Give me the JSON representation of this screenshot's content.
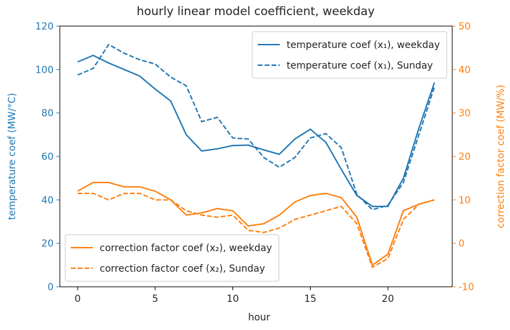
{
  "chart_data": {
    "type": "line",
    "title": "hourly linear model coefficient, weekday",
    "x_label": "hour",
    "y_label": "temperature coef (MW/°C)",
    "y2_label": "correction factor coef (MW/%)",
    "y_color": "#1f77b4",
    "y2_color": "#ff7f0e",
    "xlim": [
      -1.15,
      24.15
    ],
    "xticks": [
      0,
      5,
      10,
      15,
      20
    ],
    "ylim": [
      0,
      120
    ],
    "yticks": [
      0,
      20,
      40,
      60,
      80,
      100,
      120
    ],
    "y2lim": [
      -10,
      50
    ],
    "y2ticks": [
      -10,
      0,
      10,
      20,
      30,
      40,
      50
    ],
    "legend_location": {
      "y": "upper right",
      "y2": "lower left"
    },
    "x": [
      0,
      1,
      2,
      3,
      4,
      5,
      6,
      7,
      8,
      9,
      10,
      11,
      12,
      13,
      14,
      15,
      16,
      17,
      18,
      19,
      20,
      21,
      22,
      23
    ],
    "series": [
      {
        "name": "temperature coef (x₁), weekday",
        "color": "#1f77b4",
        "linestyle": "solid",
        "axis": "y",
        "values": [
          103.5,
          106.5,
          103,
          100,
          97,
          91,
          85.5,
          70,
          62.5,
          63.5,
          65,
          65.2,
          63,
          61,
          68,
          72.5,
          66.5,
          54,
          42,
          37,
          37,
          50,
          73,
          94
        ]
      },
      {
        "name": "temperature coef (x₁), Sunday",
        "color": "#1f77b4",
        "linestyle": "dashed",
        "axis": "y",
        "values": [
          97.5,
          100.5,
          111.5,
          107.5,
          104.5,
          102.5,
          96.5,
          92.5,
          76,
          78,
          68.5,
          68,
          59.5,
          55,
          59.5,
          68.5,
          70.5,
          64,
          42.5,
          35.5,
          37.5,
          48,
          70,
          92
        ]
      },
      {
        "name": "correction factor coef (x₂), weekday",
        "color": "#ff7f0e",
        "linestyle": "solid",
        "axis": "y2",
        "values": [
          12,
          14,
          14,
          13,
          13,
          12,
          10,
          6.5,
          7,
          8,
          7.5,
          4,
          4.5,
          6.5,
          9.5,
          11,
          11.5,
          10.5,
          6,
          -5,
          -2.5,
          7.5,
          9,
          10
        ]
      },
      {
        "name": "correction factor coef (x₂), Sunday",
        "color": "#ff7f0e",
        "linestyle": "dashed",
        "axis": "y2",
        "values": [
          11.5,
          11.5,
          10,
          11.5,
          11.5,
          10,
          10,
          7.5,
          6.5,
          6,
          6.5,
          3,
          2.5,
          3.5,
          5.5,
          6.5,
          7.5,
          8.5,
          4.5,
          -5.5,
          -3.5,
          5.5,
          9,
          10
        ]
      }
    ]
  }
}
